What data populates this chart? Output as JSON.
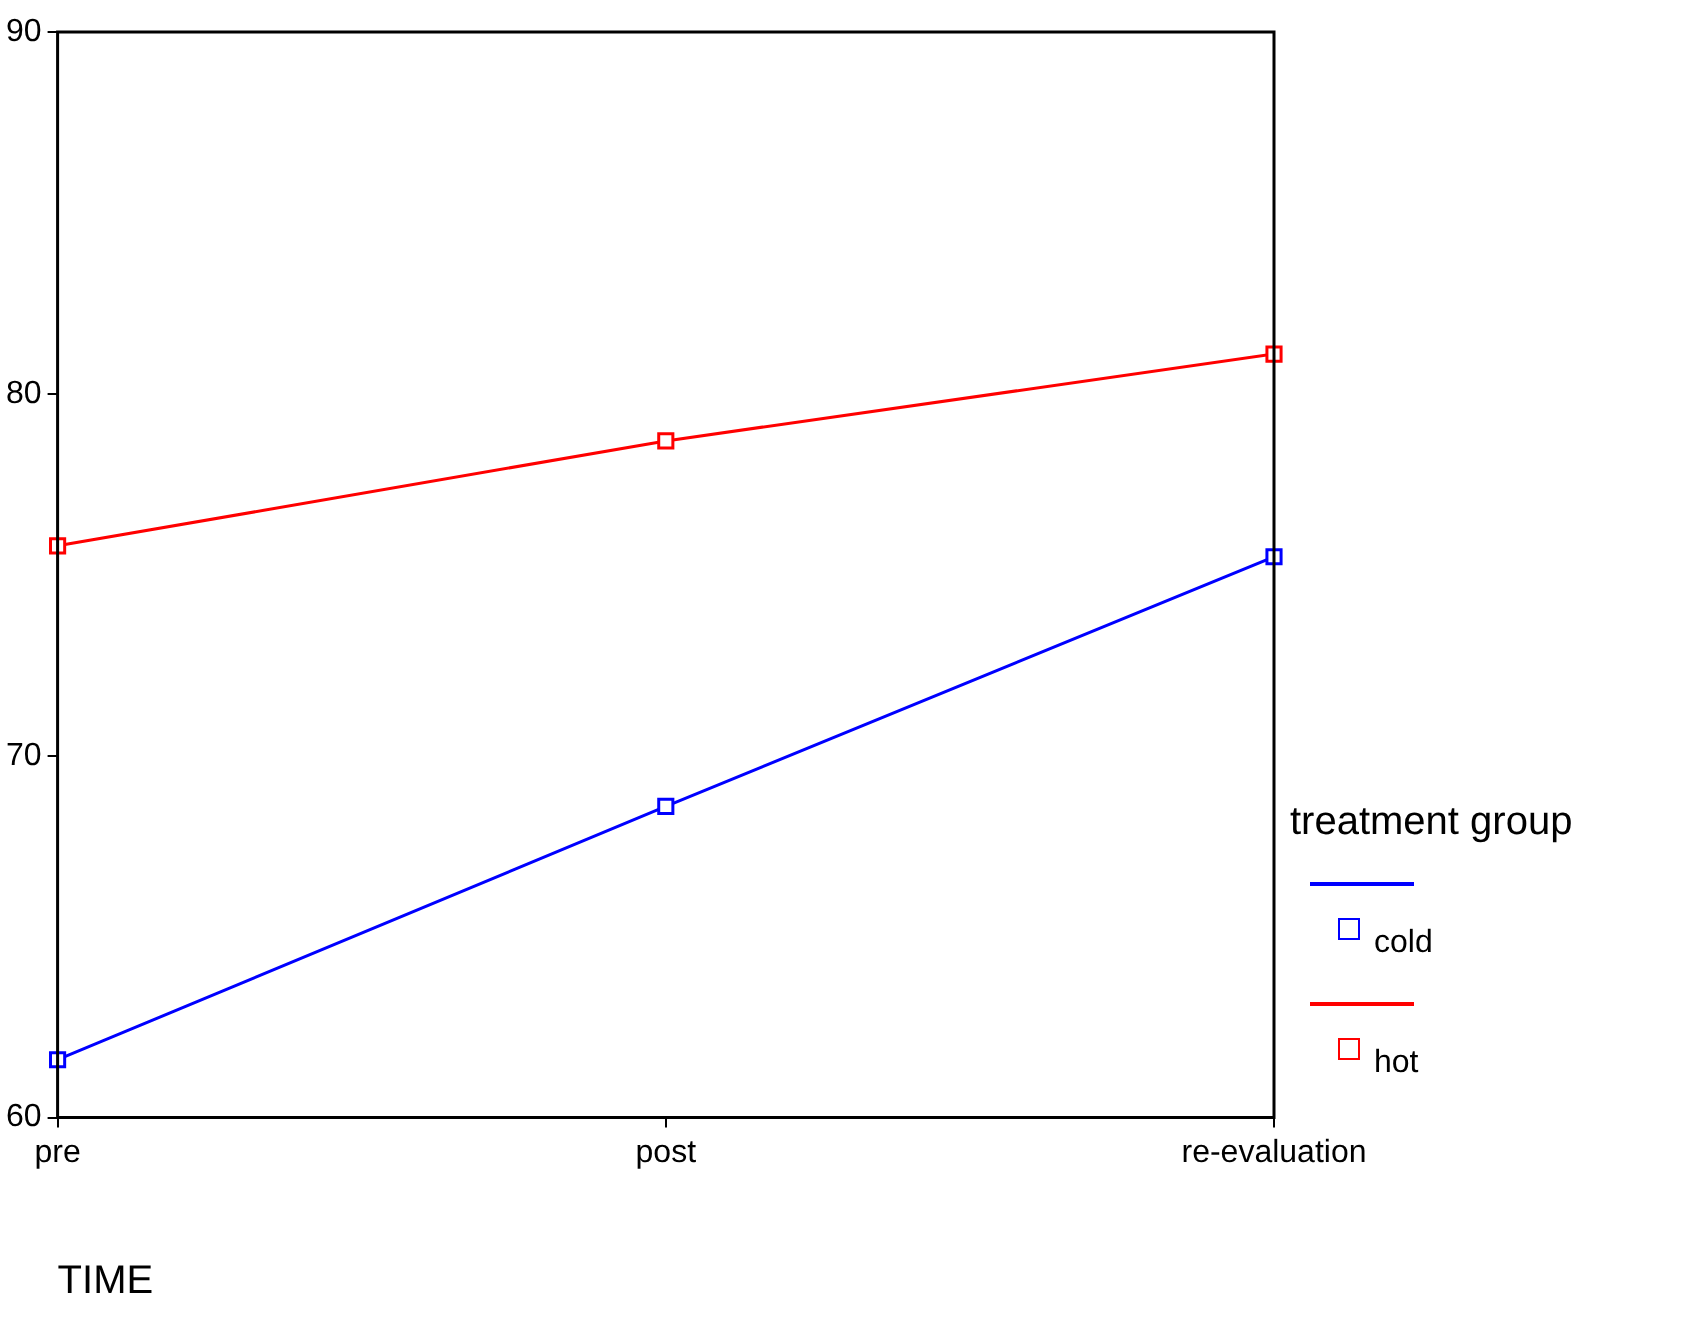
{
  "chart_data": {
    "type": "line",
    "xlabel": "TIME",
    "legend_title": "treatment group",
    "categories": [
      "pre",
      "post",
      "re-evaluation"
    ],
    "series": [
      {
        "name": "cold",
        "color": "#0000ff",
        "values": [
          61.6,
          68.6,
          75.5
        ]
      },
      {
        "name": "hot",
        "color": "#ff0000",
        "values": [
          75.8,
          78.7,
          81.1
        ]
      }
    ],
    "ylim": [
      60,
      90
    ],
    "yticks": [
      60,
      70,
      80,
      90
    ],
    "grid": false,
    "legend": "right",
    "marker": "square",
    "line_style": "solid"
  }
}
